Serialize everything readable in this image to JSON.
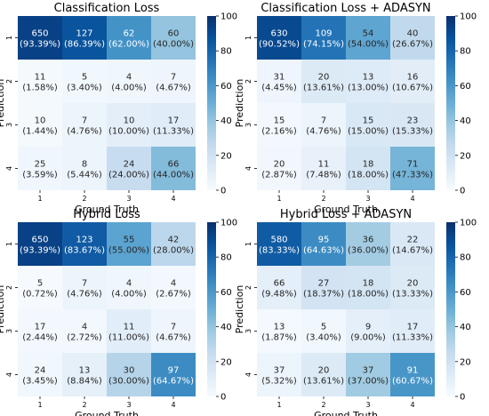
{
  "colors": {
    "scale_stops": [
      "#f7fbff",
      "#deebf7",
      "#c6dbef",
      "#9ecae1",
      "#6baed6",
      "#4292c6",
      "#2171b5",
      "#08519c",
      "#08306b"
    ],
    "text_dark": "#262626",
    "text_light": "#ffffff"
  },
  "chart_data": [
    {
      "type": "heatmap",
      "title": "Classification Loss",
      "xlabel": "Ground Truth",
      "ylabel": "Prediction",
      "x_ticks": [
        "1",
        "2",
        "3",
        "4"
      ],
      "y_ticks": [
        "1",
        "2",
        "3",
        "4"
      ],
      "colorbar": {
        "ticks": [
          "0",
          "20",
          "40",
          "60",
          "80",
          "100"
        ],
        "range": [
          0,
          100
        ]
      },
      "counts": [
        [
          650,
          127,
          62,
          60
        ],
        [
          11,
          5,
          4,
          7
        ],
        [
          10,
          7,
          10,
          17
        ],
        [
          25,
          8,
          24,
          66
        ]
      ],
      "percents": [
        [
          "93.39%",
          "86.39%",
          "62.00%",
          "40.00%"
        ],
        [
          "1.58%",
          "3.40%",
          "4.00%",
          "4.67%"
        ],
        [
          "1.44%",
          "4.76%",
          "10.00%",
          "11.33%"
        ],
        [
          "3.59%",
          "5.44%",
          "24.00%",
          "44.00%"
        ]
      ]
    },
    {
      "type": "heatmap",
      "title": "Classification Loss + ADASYN",
      "xlabel": "Ground Truth",
      "ylabel": "Prediction",
      "x_ticks": [
        "1",
        "2",
        "3",
        "4"
      ],
      "y_ticks": [
        "1",
        "2",
        "3",
        "4"
      ],
      "colorbar": {
        "ticks": [
          "0",
          "20",
          "40",
          "60",
          "80",
          "100"
        ],
        "range": [
          0,
          100
        ]
      },
      "counts": [
        [
          630,
          109,
          54,
          40
        ],
        [
          31,
          20,
          13,
          16
        ],
        [
          15,
          7,
          15,
          23
        ],
        [
          20,
          11,
          18,
          71
        ]
      ],
      "percents": [
        [
          "90.52%",
          "74.15%",
          "54.00%",
          "26.67%"
        ],
        [
          "4.45%",
          "13.61%",
          "13.00%",
          "10.67%"
        ],
        [
          "2.16%",
          "4.76%",
          "15.00%",
          "15.33%"
        ],
        [
          "2.87%",
          "7.48%",
          "18.00%",
          "47.33%"
        ]
      ]
    },
    {
      "type": "heatmap",
      "title": "Hybrid Loss",
      "xlabel": "Ground Truth",
      "ylabel": "Prediction",
      "x_ticks": [
        "1",
        "2",
        "3",
        "4"
      ],
      "y_ticks": [
        "1",
        "2",
        "3",
        "4"
      ],
      "colorbar": {
        "ticks": [
          "0",
          "20",
          "40",
          "60",
          "80",
          "100"
        ],
        "range": [
          0,
          100
        ]
      },
      "counts": [
        [
          650,
          123,
          55,
          42
        ],
        [
          5,
          7,
          4,
          4
        ],
        [
          17,
          4,
          11,
          7
        ],
        [
          24,
          13,
          30,
          97
        ]
      ],
      "percents": [
        [
          "93.39%",
          "83.67%",
          "55.00%",
          "28.00%"
        ],
        [
          "0.72%",
          "4.76%",
          "4.00%",
          "2.67%"
        ],
        [
          "2.44%",
          "2.72%",
          "11.00%",
          "4.67%"
        ],
        [
          "3.45%",
          "8.84%",
          "30.00%",
          "64.67%"
        ]
      ]
    },
    {
      "type": "heatmap",
      "title": "Hybrid Loss + ADASYN",
      "xlabel": "Ground Truth",
      "ylabel": "Prediction",
      "x_ticks": [
        "1",
        "2",
        "3",
        "4"
      ],
      "y_ticks": [
        "1",
        "2",
        "3",
        "4"
      ],
      "colorbar": {
        "ticks": [
          "0",
          "20",
          "40",
          "60",
          "80",
          "100"
        ],
        "range": [
          0,
          100
        ]
      },
      "counts": [
        [
          580,
          95,
          36,
          22
        ],
        [
          66,
          27,
          18,
          20
        ],
        [
          13,
          5,
          9,
          17
        ],
        [
          37,
          20,
          37,
          91
        ]
      ],
      "percents": [
        [
          "83.33%",
          "64.63%",
          "36.00%",
          "14.67%"
        ],
        [
          "9.48%",
          "18.37%",
          "18.00%",
          "13.33%"
        ],
        [
          "1.87%",
          "3.40%",
          "9.00%",
          "11.33%"
        ],
        [
          "5.32%",
          "13.61%",
          "37.00%",
          "60.67%"
        ]
      ]
    }
  ]
}
